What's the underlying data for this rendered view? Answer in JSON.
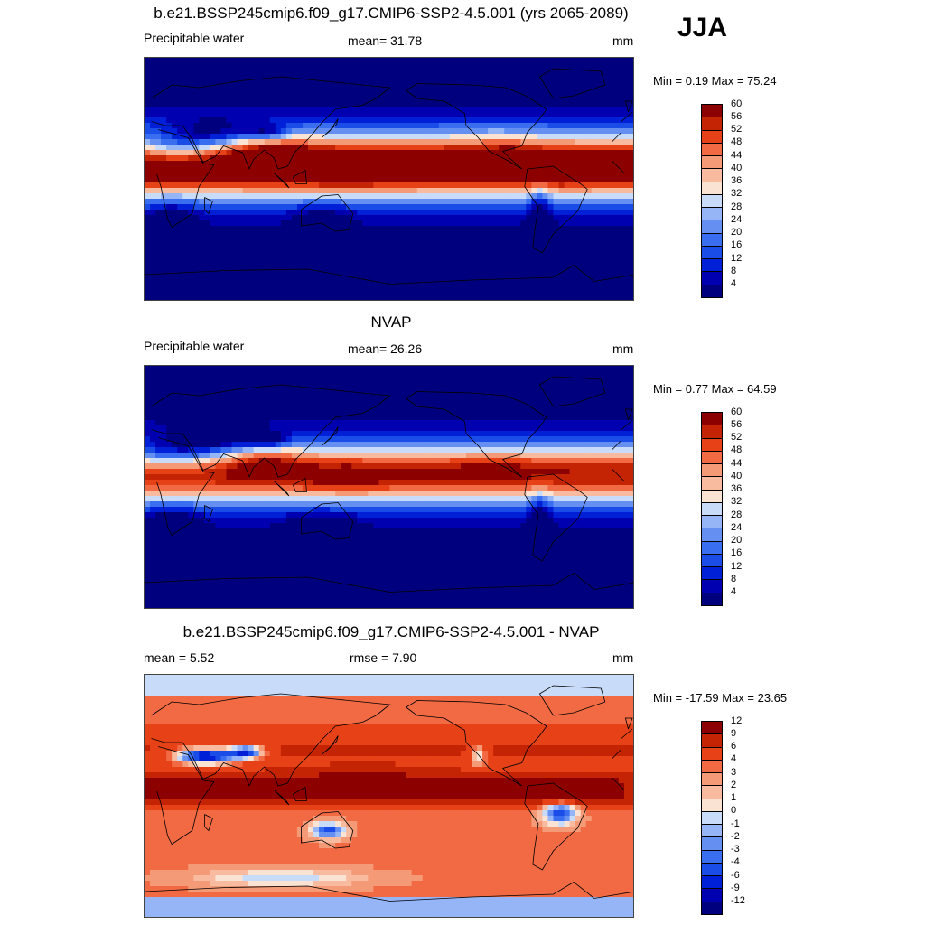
{
  "season": "JJA",
  "panels": [
    {
      "id": "model",
      "title": "b.e21.BSSP245cmip6.f09_g17.CMIP6-SSP2-4.5.001 (yrs 2065-2089)",
      "left_label": "Precipitable water",
      "center_label": "mean=  31.78",
      "units": "mm",
      "minmax": "Min =   0.19 Max =  75.24",
      "levels": [
        "4",
        "8",
        "12",
        "16",
        "20",
        "24",
        "28",
        "32",
        "36",
        "40",
        "44",
        "48",
        "52",
        "56",
        "60"
      ],
      "field": "model"
    },
    {
      "id": "obs",
      "title": "NVAP",
      "left_label": "Precipitable water",
      "center_label": "mean=  26.26",
      "units": "mm",
      "minmax": "Min =   0.77 Max =  64.59",
      "levels": [
        "4",
        "8",
        "12",
        "16",
        "20",
        "24",
        "28",
        "32",
        "36",
        "40",
        "44",
        "48",
        "52",
        "56",
        "60"
      ],
      "field": "obs"
    },
    {
      "id": "diff",
      "title": "b.e21.BSSP245cmip6.f09_g17.CMIP6-SSP2-4.5.001 - NVAP",
      "left_label": "mean =   5.52",
      "center_label": "rmse =   7.90",
      "units": "mm",
      "minmax": "Min = -17.59 Max =  23.65",
      "levels": [
        "-12",
        "-9",
        "-6",
        "-4",
        "-3",
        "-2",
        "-1",
        "0",
        "1",
        "2",
        "3",
        "4",
        "6",
        "9",
        "12"
      ],
      "field": "diff"
    }
  ],
  "chart_data": [
    {
      "type": "heatmap",
      "title": "b.e21.BSSP245cmip6.f09_g17.CMIP6-SSP2-4.5.001 (yrs 2065-2089)",
      "variable": "Precipitable water",
      "units": "mm",
      "mean": 31.78,
      "min": 0.19,
      "max": 75.24,
      "contour_levels": [
        4,
        8,
        12,
        16,
        20,
        24,
        28,
        32,
        36,
        40,
        44,
        48,
        52,
        56,
        60
      ],
      "lat_range": [
        -90,
        90
      ],
      "lon_range": [
        0,
        360
      ]
    },
    {
      "type": "heatmap",
      "title": "NVAP",
      "variable": "Precipitable water",
      "units": "mm",
      "mean": 26.26,
      "min": 0.77,
      "max": 64.59,
      "contour_levels": [
        4,
        8,
        12,
        16,
        20,
        24,
        28,
        32,
        36,
        40,
        44,
        48,
        52,
        56,
        60
      ],
      "lat_range": [
        -90,
        90
      ],
      "lon_range": [
        0,
        360
      ]
    },
    {
      "type": "heatmap",
      "title": "b.e21.BSSP245cmip6.f09_g17.CMIP6-SSP2-4.5.001 - NVAP",
      "units": "mm",
      "mean": 5.52,
      "rmse": 7.9,
      "min": -17.59,
      "max": 23.65,
      "contour_levels": [
        -12,
        -9,
        -6,
        -4,
        -3,
        -2,
        -1,
        0,
        1,
        2,
        3,
        4,
        6,
        9,
        12
      ],
      "lat_range": [
        -90,
        90
      ],
      "lon_range": [
        0,
        360
      ]
    }
  ],
  "palette": [
    "#00007f",
    "#0000b0",
    "#0020d8",
    "#1a4ce8",
    "#3a6ef0",
    "#6590f2",
    "#95b5f6",
    "#c8dbf9",
    "#fbe3d3",
    "#f9bba0",
    "#f59a76",
    "#f16a43",
    "#e74217",
    "#c52404",
    "#8c0000"
  ],
  "line_color": "#000000"
}
